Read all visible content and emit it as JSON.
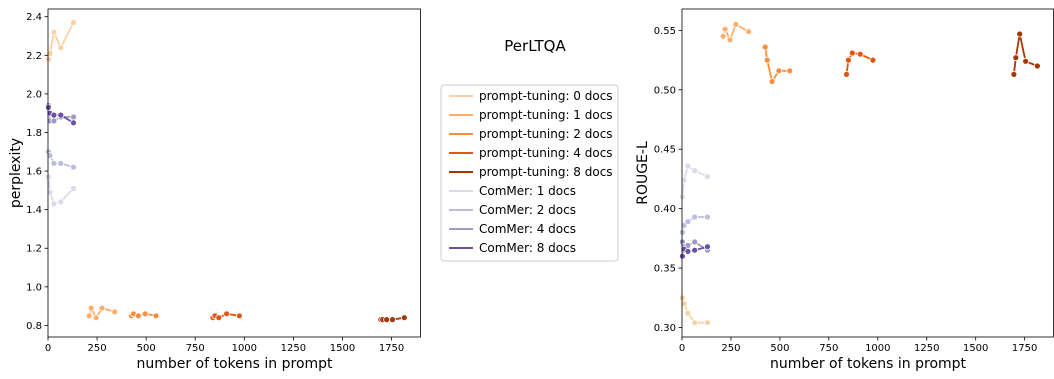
{
  "chart_data": {
    "title": "PerLTQA",
    "legend": {
      "placement": "center",
      "entries": [
        {
          "label": "prompt-tuning: 0 docs",
          "color": "#fdd0a2"
        },
        {
          "label": "prompt-tuning: 1 docs",
          "color": "#fdae6b"
        },
        {
          "label": "prompt-tuning: 2 docs",
          "color": "#fd8d3c"
        },
        {
          "label": "prompt-tuning: 4 docs",
          "color": "#e6550d"
        },
        {
          "label": "prompt-tuning: 8 docs",
          "color": "#a63603"
        },
        {
          "label": "ComMer: 1 docs",
          "color": "#dadaeb"
        },
        {
          "label": "ComMer: 2 docs",
          "color": "#bcbddc"
        },
        {
          "label": "ComMer: 4 docs",
          "color": "#9e9ac8"
        },
        {
          "label": "ComMer: 8 docs",
          "color": "#6a51a3"
        }
      ]
    },
    "charts": [
      {
        "type": "line",
        "xlabel": "number of tokens in prompt",
        "ylabel": "perplexity",
        "xlim": [
          0,
          1900
        ],
        "ylim": [
          0.74,
          2.44
        ],
        "xticks": [
          0,
          250,
          500,
          750,
          1000,
          1250,
          1500,
          1750
        ],
        "yticks": [
          0.8,
          1.0,
          1.2,
          1.4,
          1.6,
          1.8,
          2.0,
          2.2,
          2.4
        ],
        "ytick_labels": [
          "0.8",
          "1.0",
          "1.2",
          "1.4",
          "1.6",
          "1.8",
          "2.0",
          "2.2",
          "2.4"
        ],
        "grid": false,
        "series": [
          {
            "name": "prompt-tuning: 0 docs",
            "color": "#fdd0a2",
            "x": [
              2,
              10,
              30,
              65,
              130
            ],
            "y": [
              2.18,
              2.21,
              2.32,
              2.24,
              2.37
            ]
          },
          {
            "name": "prompt-tuning: 1 docs",
            "color": "#fdae6b",
            "x": [
              210,
              220,
              245,
              275,
              340
            ],
            "y": [
              0.85,
              0.89,
              0.84,
              0.89,
              0.87
            ]
          },
          {
            "name": "prompt-tuning: 2 docs",
            "color": "#fd8d3c",
            "x": [
              425,
              435,
              460,
              495,
              550
            ],
            "y": [
              0.85,
              0.86,
              0.85,
              0.86,
              0.85
            ]
          },
          {
            "name": "prompt-tuning: 4 docs",
            "color": "#e6550d",
            "x": [
              840,
              850,
              870,
              910,
              975
            ],
            "y": [
              0.84,
              0.85,
              0.84,
              0.86,
              0.85
            ]
          },
          {
            "name": "prompt-tuning: 8 docs",
            "color": "#a63603",
            "x": [
              1695,
              1705,
              1725,
              1755,
              1815
            ],
            "y": [
              0.83,
              0.83,
              0.83,
              0.83,
              0.84
            ]
          },
          {
            "name": "ComMer: 1 docs",
            "color": "#dadaeb",
            "x": [
              2,
              10,
              30,
              65,
              130
            ],
            "y": [
              1.57,
              1.49,
              1.43,
              1.44,
              1.51
            ]
          },
          {
            "name": "ComMer: 2 docs",
            "color": "#bcbddc",
            "x": [
              2,
              10,
              30,
              65,
              130
            ],
            "y": [
              1.7,
              1.68,
              1.64,
              1.64,
              1.62
            ]
          },
          {
            "name": "ComMer: 4 docs",
            "color": "#9e9ac8",
            "x": [
              2,
              10,
              30,
              65,
              130
            ],
            "y": [
              1.94,
              1.86,
              1.86,
              1.88,
              1.88
            ]
          },
          {
            "name": "ComMer: 8 docs",
            "color": "#6a51a3",
            "x": [
              2,
              10,
              30,
              65,
              130
            ],
            "y": [
              1.93,
              1.9,
              1.89,
              1.89,
              1.85
            ]
          }
        ]
      },
      {
        "type": "line",
        "xlabel": "number of tokens in prompt",
        "ylabel": "ROUGE-L",
        "xlim": [
          0,
          1900
        ],
        "ylim": [
          0.292,
          0.568
        ],
        "xticks": [
          0,
          250,
          500,
          750,
          1000,
          1250,
          1500,
          1750
        ],
        "yticks": [
          0.3,
          0.35,
          0.4,
          0.45,
          0.5,
          0.55
        ],
        "ytick_labels": [
          "0.30",
          "0.35",
          "0.40",
          "0.45",
          "0.50",
          "0.55"
        ],
        "grid": false,
        "series": [
          {
            "name": "prompt-tuning: 0 docs",
            "color": "#fdd0a2",
            "x": [
              2,
              10,
              30,
              65,
              130
            ],
            "y": [
              0.325,
              0.32,
              0.312,
              0.304,
              0.304
            ]
          },
          {
            "name": "prompt-tuning: 1 docs",
            "color": "#fdae6b",
            "x": [
              210,
              220,
              245,
              275,
              340
            ],
            "y": [
              0.545,
              0.551,
              0.542,
              0.555,
              0.549
            ]
          },
          {
            "name": "prompt-tuning: 2 docs",
            "color": "#fd8d3c",
            "x": [
              425,
              435,
              460,
              495,
              550
            ],
            "y": [
              0.536,
              0.525,
              0.507,
              0.516,
              0.516
            ]
          },
          {
            "name": "prompt-tuning: 4 docs",
            "color": "#e6550d",
            "x": [
              840,
              850,
              870,
              910,
              975
            ],
            "y": [
              0.513,
              0.525,
              0.531,
              0.53,
              0.525
            ]
          },
          {
            "name": "prompt-tuning: 8 docs",
            "color": "#a63603",
            "x": [
              1695,
              1705,
              1725,
              1755,
              1815
            ],
            "y": [
              0.513,
              0.527,
              0.547,
              0.524,
              0.52
            ]
          },
          {
            "name": "ComMer: 1 docs",
            "color": "#dadaeb",
            "x": [
              2,
              10,
              30,
              65,
              130
            ],
            "y": [
              0.41,
              0.424,
              0.436,
              0.432,
              0.427
            ]
          },
          {
            "name": "ComMer: 2 docs",
            "color": "#bcbddc",
            "x": [
              2,
              10,
              30,
              65,
              130
            ],
            "y": [
              0.38,
              0.386,
              0.389,
              0.393,
              0.393
            ]
          },
          {
            "name": "ComMer: 4 docs",
            "color": "#9e9ac8",
            "x": [
              2,
              10,
              30,
              65,
              130
            ],
            "y": [
              0.372,
              0.368,
              0.369,
              0.372,
              0.365
            ]
          },
          {
            "name": "ComMer: 8 docs",
            "color": "#6a51a3",
            "x": [
              2,
              10,
              30,
              65,
              130
            ],
            "y": [
              0.36,
              0.366,
              0.364,
              0.365,
              0.368
            ]
          }
        ]
      }
    ]
  }
}
